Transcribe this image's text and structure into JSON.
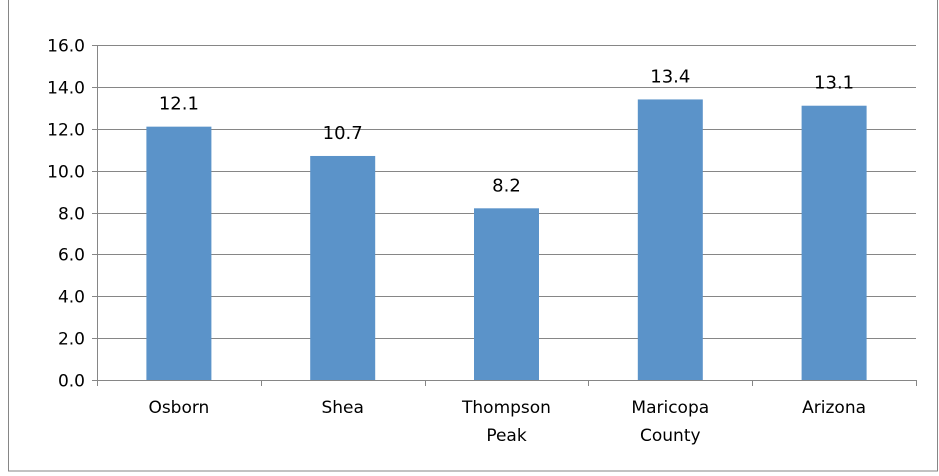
{
  "chart_data": {
    "type": "bar",
    "categories": [
      [
        "Osborn"
      ],
      [
        "Shea"
      ],
      [
        "Thompson",
        "Peak"
      ],
      [
        "Maricopa",
        "County"
      ],
      [
        "Arizona"
      ]
    ],
    "values": [
      12.1,
      10.7,
      8.2,
      13.4,
      13.1
    ],
    "data_labels": [
      "12.1",
      "10.7",
      "8.2",
      "13.4",
      "13.1"
    ],
    "ylim": [
      0,
      16
    ],
    "yticks": [
      "0.0",
      "2.0",
      "4.0",
      "6.0",
      "8.0",
      "10.0",
      "12.0",
      "14.0",
      "16.0"
    ],
    "grid": true,
    "legend": "none",
    "title": "",
    "xlabel": "",
    "ylabel": "",
    "colors": {
      "bar": "#5B93C9",
      "grid": "#868686",
      "axis": "#868686",
      "frame": "#868686"
    }
  }
}
